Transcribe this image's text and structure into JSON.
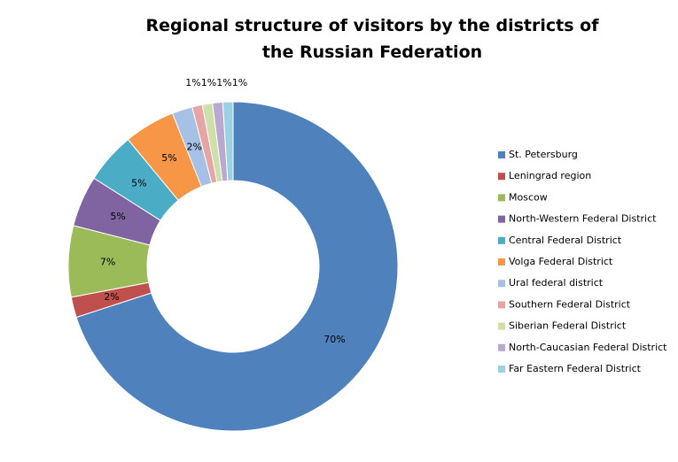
{
  "chart_data": {
    "type": "donut",
    "title": "Regional structure of visitors by the districts of the Russian Federation",
    "categories": [
      "St. Petersburg",
      "Leningrad region",
      "Moscow",
      "North-Western Federal District",
      "Central Federal District",
      "Volga Federal District",
      "Ural federal district",
      "Southern Federal District",
      "Siberian Federal District",
      "North-Caucasian Federal District",
      "Far Eastern Federal District"
    ],
    "values": [
      70,
      2,
      7,
      5,
      5,
      5,
      2,
      1,
      1,
      1,
      1
    ],
    "value_labels": [
      "70%",
      "2%",
      "7%",
      "5%",
      "5%",
      "5%",
      "2%",
      "1%",
      "1%",
      "1%",
      "1%"
    ],
    "colors": [
      "#4f81bd",
      "#c0504d",
      "#9bbb59",
      "#8064a2",
      "#4bacc6",
      "#f79646",
      "#a7c0e5",
      "#e6a5a4",
      "#cfdfaa",
      "#b9a8d0",
      "#9ad2e3"
    ],
    "legend": "right"
  }
}
